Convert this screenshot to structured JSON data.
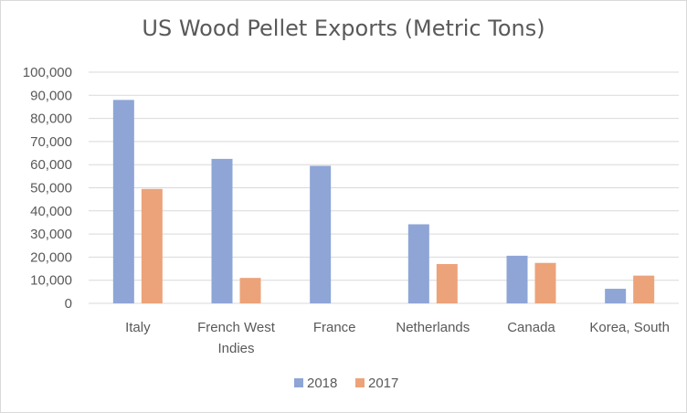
{
  "chart_data": {
    "type": "bar",
    "title": "US Wood Pellet Exports (Metric Tons)",
    "xlabel": "",
    "ylabel": "",
    "categories": [
      [
        "Italy"
      ],
      [
        "French West",
        "Indies"
      ],
      [
        "France"
      ],
      [
        "Netherlands"
      ],
      [
        "Canada"
      ],
      [
        "Korea, South"
      ]
    ],
    "series": [
      {
        "name": "2018",
        "values": [
          88000,
          62500,
          59500,
          34200,
          20600,
          6300
        ],
        "color": "#8ea5d6"
      },
      {
        "name": "2017",
        "values": [
          49500,
          11000,
          0,
          17000,
          17500,
          12000
        ],
        "color": "#eca37a"
      }
    ],
    "ylim": [
      0,
      100000
    ],
    "yticks": [
      0,
      10000,
      20000,
      30000,
      40000,
      50000,
      60000,
      70000,
      80000,
      90000,
      100000
    ],
    "ytick_labels": [
      "0",
      "10,000",
      "20,000",
      "30,000",
      "40,000",
      "50,000",
      "60,000",
      "70,000",
      "80,000",
      "90,000",
      "100,000"
    ],
    "grid": true,
    "legend_position": "bottom"
  }
}
